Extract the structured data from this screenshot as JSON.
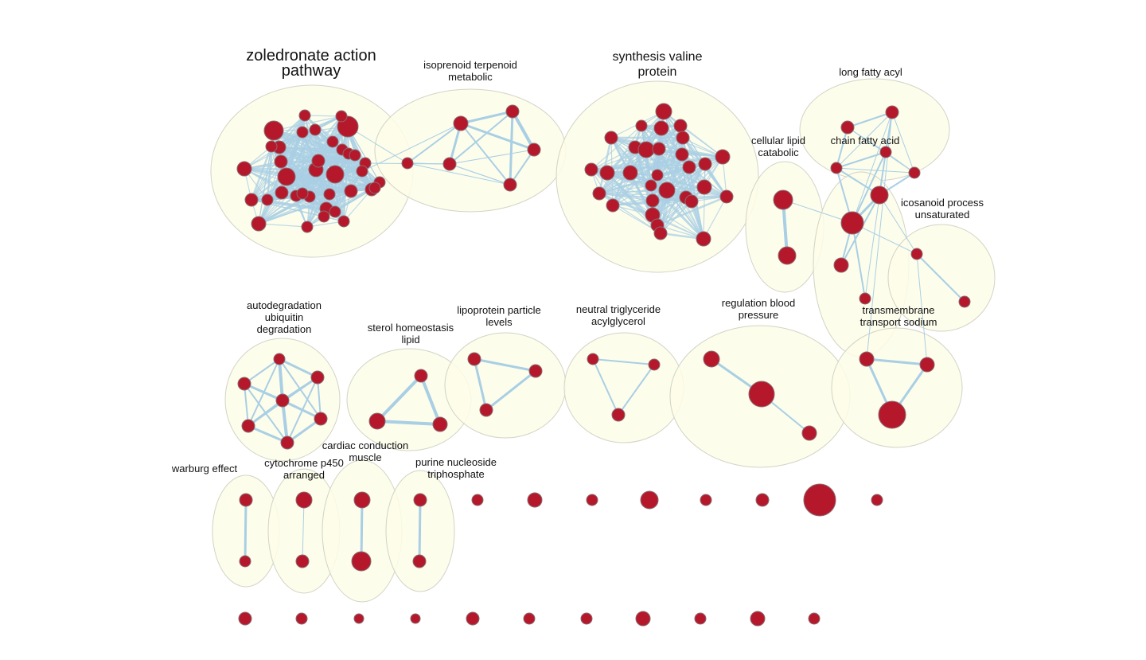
{
  "clusters": [
    {
      "id": "zoledronate",
      "label": [
        "zoledronate action",
        "pathway"
      ]
    },
    {
      "id": "isoprenoid",
      "label": [
        "isoprenoid terpenoid",
        "metabolic"
      ]
    },
    {
      "id": "valine",
      "label": [
        "synthesis valine",
        "protein"
      ]
    },
    {
      "id": "cellular-lipid",
      "label": [
        "cellular lipid",
        "catabolic"
      ]
    },
    {
      "id": "long-fatty",
      "label": [
        "long fatty acyl"
      ]
    },
    {
      "id": "chain-fatty",
      "label": [
        "chain fatty acid"
      ]
    },
    {
      "id": "icosanoid",
      "label": [
        "icosanoid process",
        "unsaturated"
      ]
    },
    {
      "id": "autodegradation",
      "label": [
        "autodegradation",
        "ubiquitin",
        "degradation"
      ]
    },
    {
      "id": "sterol",
      "label": [
        "sterol homeostasis",
        "lipid"
      ]
    },
    {
      "id": "lipoprotein",
      "label": [
        "lipoprotein particle",
        "levels"
      ]
    },
    {
      "id": "neutral-tg",
      "label": [
        "neutral triglyceride",
        "acylglycerol"
      ]
    },
    {
      "id": "regulation-bp",
      "label": [
        "regulation blood",
        "pressure"
      ]
    },
    {
      "id": "transmembrane",
      "label": [
        "transmembrane",
        "transport sodium"
      ]
    },
    {
      "id": "warburg",
      "label": [
        "warburg effect"
      ]
    },
    {
      "id": "cytochrome",
      "label": [
        "cytochrome p450",
        "arranged"
      ]
    },
    {
      "id": "cardiac",
      "label": [
        "cardiac conduction",
        "muscle"
      ]
    },
    {
      "id": "purine",
      "label": [
        "purine nucleoside",
        "triphosphate"
      ]
    }
  ],
  "colors": {
    "node": "#b5182b",
    "edge": "#a9cfe4",
    "cluster_fill": "#fdfde9",
    "cluster_stroke": "#d3d3c6"
  }
}
